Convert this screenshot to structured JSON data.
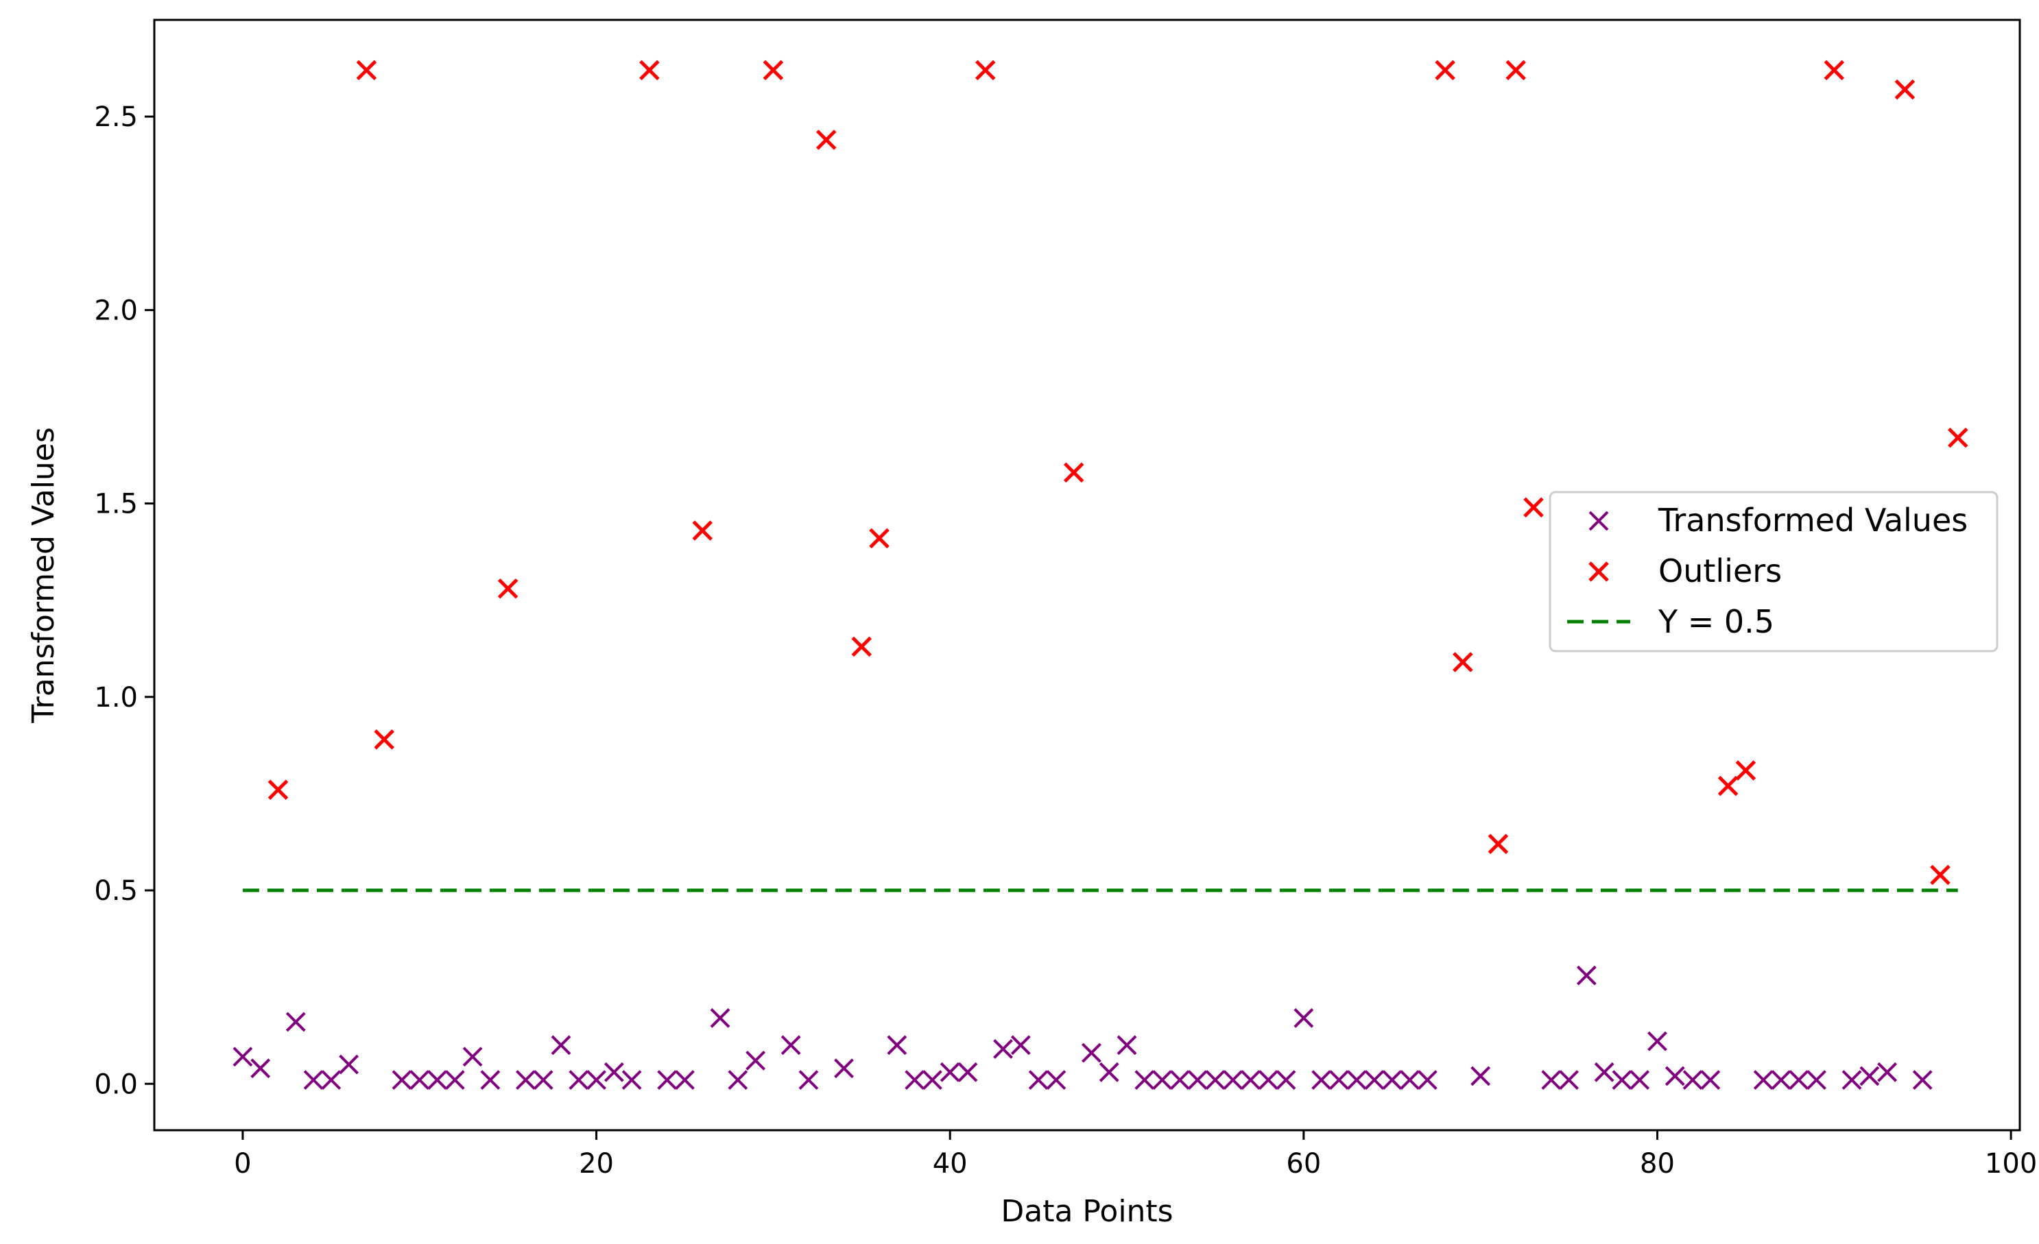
{
  "chart_data": {
    "type": "scatter",
    "title": "",
    "xlabel": "Data Points",
    "ylabel": "Transformed Values",
    "xlim": [
      -5,
      100.5
    ],
    "ylim": [
      -0.12,
      2.75
    ],
    "xticks": [
      0,
      20,
      40,
      60,
      80,
      100
    ],
    "yticks": [
      0.0,
      0.5,
      1.0,
      1.5,
      2.0,
      2.5
    ],
    "xtick_labels": [
      "0",
      "20",
      "40",
      "60",
      "80",
      "100"
    ],
    "ytick_labels": [
      "0.0",
      "0.5",
      "1.0",
      "1.5",
      "2.0",
      "2.5"
    ],
    "grid": false,
    "legend_position": "center-right",
    "series": [
      {
        "name": "Transformed Values",
        "marker": "x",
        "color": "#800080",
        "points": [
          [
            0,
            0.07
          ],
          [
            1,
            0.04
          ],
          [
            3,
            0.16
          ],
          [
            4,
            0.01
          ],
          [
            5,
            0.01
          ],
          [
            6,
            0.05
          ],
          [
            9,
            0.01
          ],
          [
            10,
            0.01
          ],
          [
            11,
            0.01
          ],
          [
            12,
            0.01
          ],
          [
            13,
            0.07
          ],
          [
            14,
            0.01
          ],
          [
            16,
            0.01
          ],
          [
            17,
            0.01
          ],
          [
            18,
            0.1
          ],
          [
            19,
            0.01
          ],
          [
            20,
            0.01
          ],
          [
            21,
            0.03
          ],
          [
            22,
            0.01
          ],
          [
            24,
            0.01
          ],
          [
            25,
            0.01
          ],
          [
            27,
            0.17
          ],
          [
            28,
            0.01
          ],
          [
            29,
            0.06
          ],
          [
            31,
            0.1
          ],
          [
            32,
            0.01
          ],
          [
            34,
            0.04
          ],
          [
            37,
            0.1
          ],
          [
            38,
            0.01
          ],
          [
            39,
            0.01
          ],
          [
            40,
            0.03
          ],
          [
            41,
            0.03
          ],
          [
            43,
            0.09
          ],
          [
            44,
            0.1
          ],
          [
            45,
            0.01
          ],
          [
            46,
            0.01
          ],
          [
            48,
            0.08
          ],
          [
            49,
            0.03
          ],
          [
            50,
            0.1
          ],
          [
            51,
            0.01
          ],
          [
            52,
            0.01
          ],
          [
            53,
            0.01
          ],
          [
            54,
            0.01
          ],
          [
            55,
            0.01
          ],
          [
            56,
            0.01
          ],
          [
            57,
            0.01
          ],
          [
            58,
            0.01
          ],
          [
            59,
            0.01
          ],
          [
            60,
            0.17
          ],
          [
            61,
            0.01
          ],
          [
            62,
            0.01
          ],
          [
            63,
            0.01
          ],
          [
            64,
            0.01
          ],
          [
            65,
            0.01
          ],
          [
            66,
            0.01
          ],
          [
            67,
            0.01
          ],
          [
            70,
            0.02
          ],
          [
            74,
            0.01
          ],
          [
            75,
            0.01
          ],
          [
            76,
            0.28
          ],
          [
            77,
            0.03
          ],
          [
            78,
            0.01
          ],
          [
            79,
            0.01
          ],
          [
            80,
            0.11
          ],
          [
            81,
            0.02
          ],
          [
            82,
            0.01
          ],
          [
            83,
            0.01
          ],
          [
            86,
            0.01
          ],
          [
            87,
            0.01
          ],
          [
            88,
            0.01
          ],
          [
            89,
            0.01
          ],
          [
            91,
            0.01
          ],
          [
            92,
            0.02
          ],
          [
            93,
            0.03
          ],
          [
            95,
            0.01
          ]
        ]
      },
      {
        "name": "Outliers",
        "marker": "x",
        "color": "#ff0000",
        "points": [
          [
            2,
            0.76
          ],
          [
            7,
            2.62
          ],
          [
            8,
            0.89
          ],
          [
            15,
            1.28
          ],
          [
            23,
            2.62
          ],
          [
            26,
            1.43
          ],
          [
            30,
            2.62
          ],
          [
            33,
            2.44
          ],
          [
            35,
            1.13
          ],
          [
            36,
            1.41
          ],
          [
            42,
            2.62
          ],
          [
            47,
            1.58
          ],
          [
            68,
            2.62
          ],
          [
            69,
            1.09
          ],
          [
            71,
            0.62
          ],
          [
            72,
            2.62
          ],
          [
            73,
            1.49
          ],
          [
            84,
            0.77
          ],
          [
            85,
            0.81
          ],
          [
            90,
            2.62
          ],
          [
            94,
            2.57
          ],
          [
            96,
            0.54
          ],
          [
            97,
            1.67
          ]
        ]
      }
    ],
    "reference_line": {
      "name": "Y = 0.5",
      "y": 0.5,
      "x_range": [
        0,
        97
      ],
      "style": "dashed",
      "color": "#008000"
    }
  }
}
